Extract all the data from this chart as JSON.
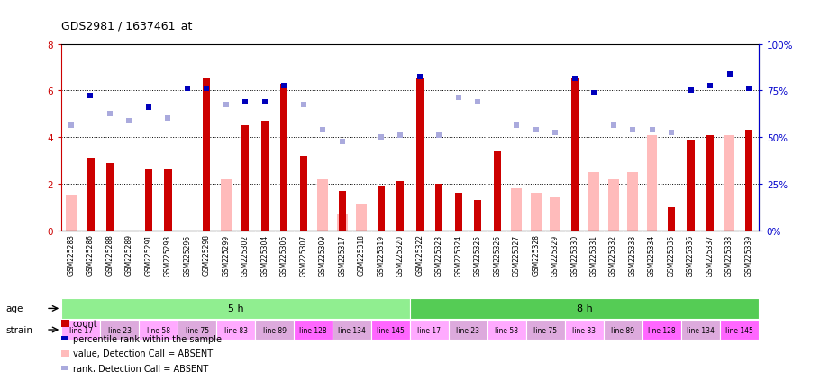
{
  "title": "GDS2981 / 1637461_at",
  "samples": [
    "GSM225283",
    "GSM225286",
    "GSM225288",
    "GSM225289",
    "GSM225291",
    "GSM225293",
    "GSM225296",
    "GSM225298",
    "GSM225299",
    "GSM225302",
    "GSM225304",
    "GSM225306",
    "GSM225307",
    "GSM225309",
    "GSM225317",
    "GSM225318",
    "GSM225319",
    "GSM225320",
    "GSM225322",
    "GSM225323",
    "GSM225324",
    "GSM225325",
    "GSM225326",
    "GSM225327",
    "GSM225328",
    "GSM225329",
    "GSM225330",
    "GSM225331",
    "GSM225332",
    "GSM225333",
    "GSM225334",
    "GSM225335",
    "GSM225336",
    "GSM225337",
    "GSM225338",
    "GSM225339"
  ],
  "count_values": [
    null,
    3.1,
    2.9,
    null,
    2.6,
    2.6,
    null,
    6.5,
    null,
    4.5,
    4.7,
    6.3,
    3.2,
    null,
    1.7,
    null,
    1.9,
    2.1,
    6.5,
    2.0,
    1.6,
    1.3,
    3.4,
    null,
    null,
    null,
    6.5,
    null,
    null,
    null,
    null,
    1.0,
    3.9,
    4.1,
    null,
    4.3
  ],
  "value_absent": [
    1.5,
    null,
    null,
    null,
    null,
    null,
    null,
    null,
    2.2,
    null,
    null,
    null,
    null,
    2.2,
    0.7,
    1.1,
    null,
    null,
    null,
    null,
    null,
    null,
    null,
    1.8,
    1.6,
    1.4,
    null,
    2.5,
    2.2,
    2.5,
    4.1,
    null,
    null,
    null,
    4.1,
    null
  ],
  "rank_present": [
    null,
    5.8,
    null,
    null,
    5.3,
    null,
    6.1,
    6.1,
    null,
    5.5,
    5.5,
    6.2,
    null,
    null,
    null,
    null,
    null,
    null,
    6.6,
    null,
    null,
    null,
    null,
    null,
    null,
    null,
    6.5,
    5.9,
    null,
    null,
    null,
    null,
    6.0,
    6.2,
    6.7,
    6.1
  ],
  "rank_absent": [
    4.5,
    null,
    5.0,
    4.7,
    null,
    4.8,
    null,
    null,
    5.4,
    null,
    null,
    null,
    5.4,
    4.3,
    3.8,
    null,
    4.0,
    4.1,
    null,
    4.1,
    5.7,
    5.5,
    null,
    4.5,
    4.3,
    4.2,
    null,
    null,
    4.5,
    4.3,
    4.3,
    4.2,
    null,
    null,
    null,
    null
  ],
  "age_groups": [
    {
      "label": "5 h",
      "start": 0,
      "end": 18,
      "color": "#90ee90"
    },
    {
      "label": "8 h",
      "start": 18,
      "end": 36,
      "color": "#55cc55"
    }
  ],
  "strain_labels": [
    "line 17",
    "line 23",
    "line 58",
    "line 75",
    "line 83",
    "line 89",
    "line 128",
    "line 134",
    "line 145"
  ],
  "strain_colors": [
    "#ffaaff",
    "#ffaaff",
    "#ffaaff",
    "#ffaaff",
    "#ffaaff",
    "#ffaaff",
    "#ff66ff",
    "#ffaaff",
    "#ff66ff"
  ],
  "ylim_left": [
    0,
    8
  ],
  "ylim_right": [
    0,
    100
  ],
  "yticks_left": [
    0,
    2,
    4,
    6,
    8
  ],
  "yticks_right": [
    0,
    25,
    50,
    75,
    100
  ],
  "bar_color_count": "#cc0000",
  "bar_color_absent": "#ffbbbb",
  "dot_color_rank_present": "#0000bb",
  "dot_color_rank_absent": "#aaaadd",
  "background_color": "#ffffff",
  "axis_label_color_left": "#cc0000",
  "axis_label_color_right": "#0000cc",
  "xticklabel_bg": "#cccccc"
}
